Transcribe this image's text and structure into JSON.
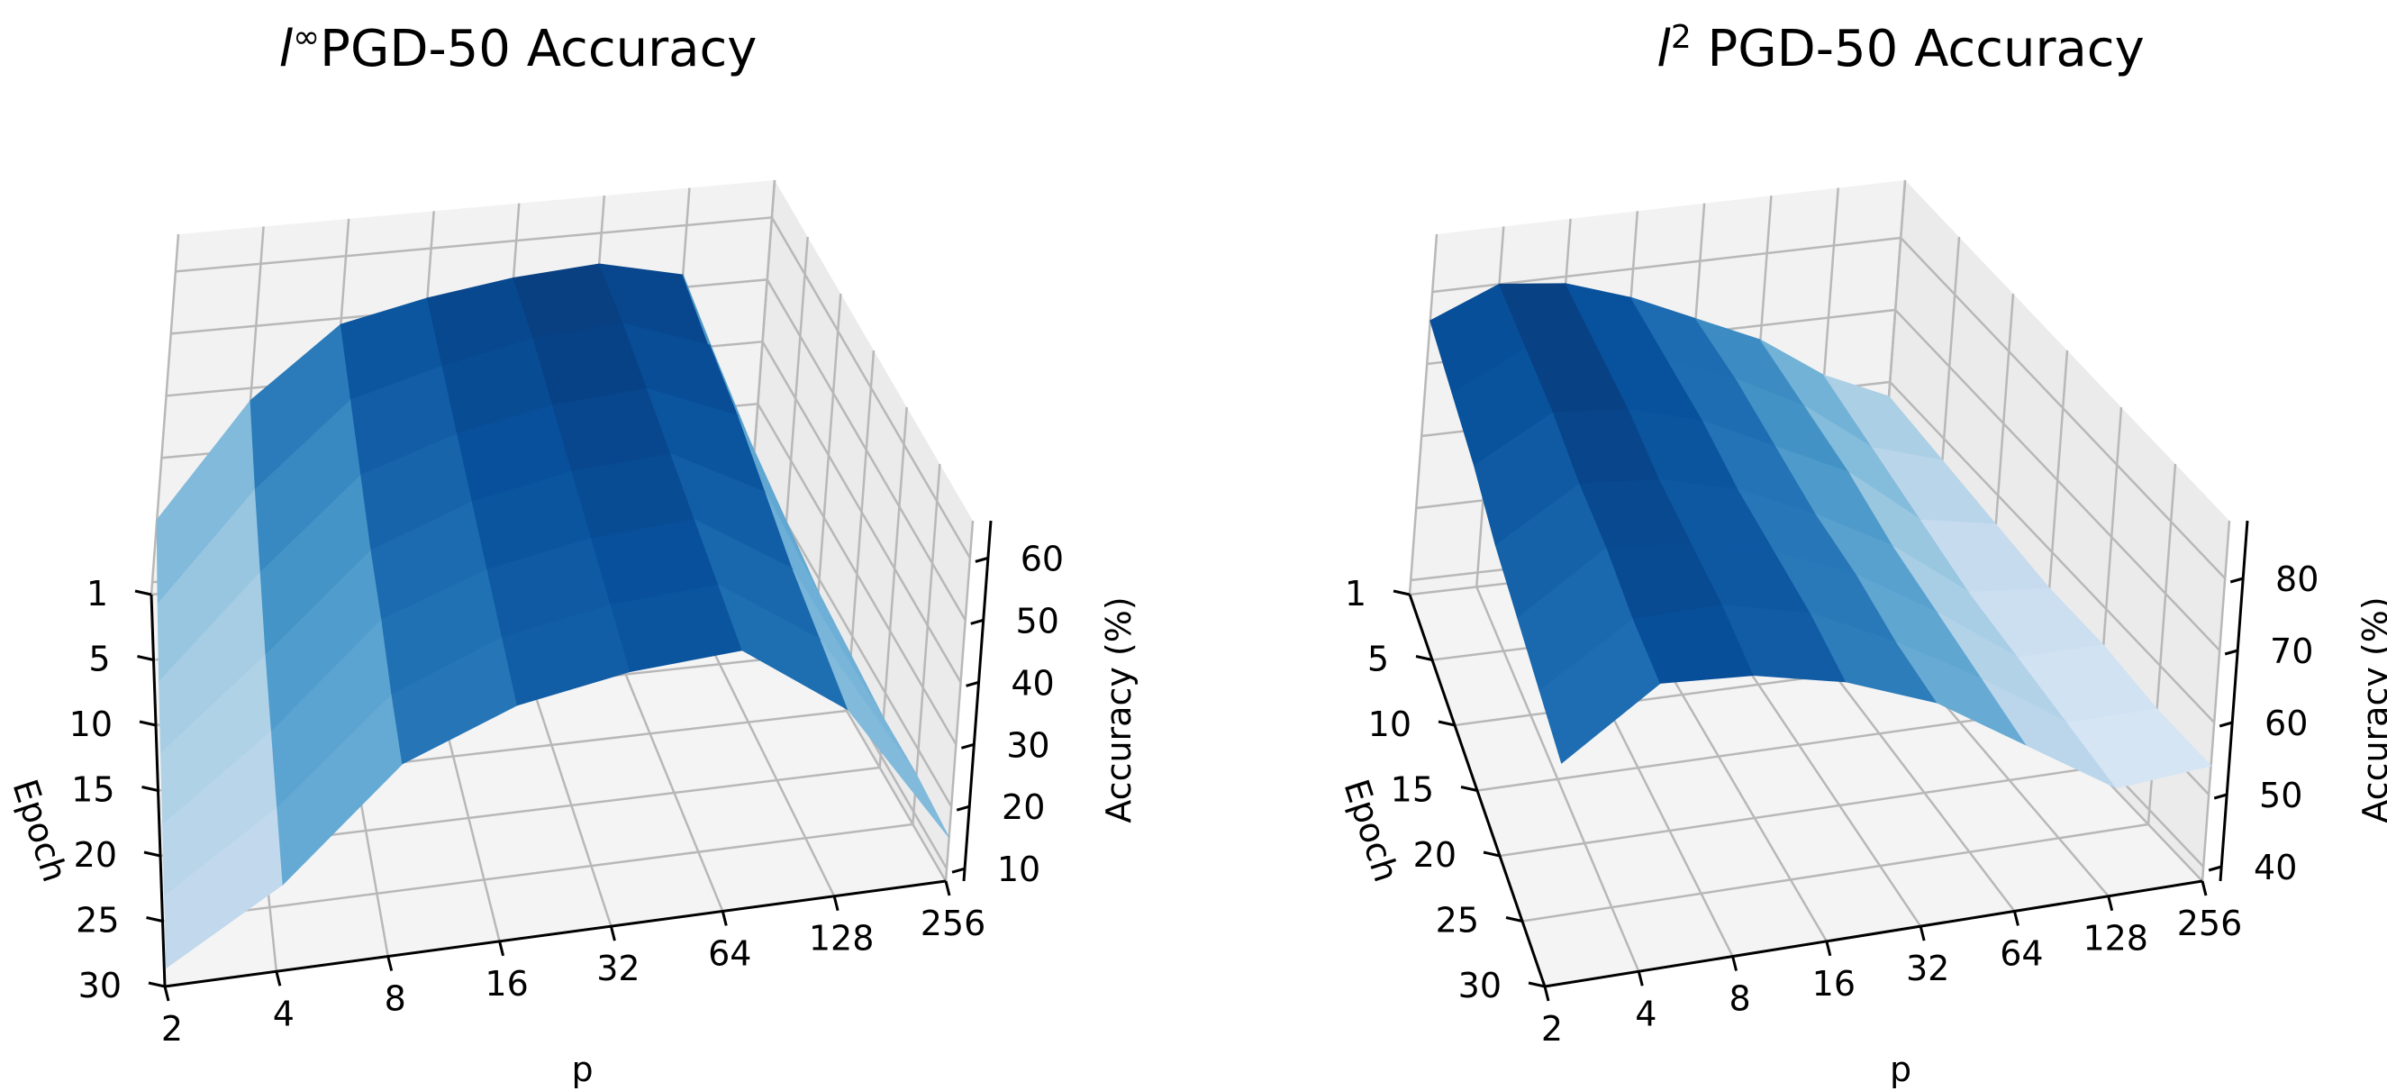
{
  "chart_data": [
    {
      "type": "surface3d",
      "title_main": "l",
      "title_sup": "∞",
      "title_rest": "PGD-50 Accuracy",
      "xlabel": "p",
      "ylabel": "Epoch",
      "zlabel": "Accuracy (%)",
      "x_ticks": [
        "2",
        "4",
        "8",
        "16",
        "32",
        "64",
        "128",
        "256"
      ],
      "y_ticks": [
        "1",
        "5",
        "10",
        "15",
        "20",
        "25",
        "30"
      ],
      "z_ticks": [
        "10",
        "20",
        "30",
        "40",
        "50",
        "60"
      ],
      "zlim": [
        8,
        66
      ],
      "colormap": "Blues",
      "note": "surface values per p (columns) and epoch (rows 1,5,10,15,20,25,30)",
      "epochs": [
        1,
        5,
        10,
        15,
        20,
        25,
        30
      ],
      "z": [
        [
          20,
          38,
          49,
          52,
          54,
          55,
          52,
          20
        ],
        [
          17,
          34,
          47,
          51,
          54,
          55,
          50,
          19
        ],
        [
          15,
          31,
          45,
          50,
          53,
          54,
          48,
          18
        ],
        [
          14,
          28,
          43,
          49,
          52,
          53,
          45,
          17
        ],
        [
          13,
          26,
          42,
          48,
          51,
          52,
          42,
          16
        ],
        [
          12,
          24,
          40,
          47,
          50,
          51,
          40,
          16
        ],
        [
          11,
          22,
          39,
          46,
          49,
          50,
          38,
          15
        ]
      ]
    },
    {
      "type": "surface3d",
      "title_main": "l",
      "title_sup": "2",
      "title_rest": " PGD-50 Accuracy",
      "xlabel": "p",
      "ylabel": "Epoch",
      "zlabel": "Accuracy (%)",
      "x_ticks": [
        "2",
        "4",
        "8",
        "16",
        "32",
        "64",
        "128",
        "256"
      ],
      "y_ticks": [
        "1",
        "5",
        "10",
        "15",
        "20",
        "25",
        "30"
      ],
      "z_ticks": [
        "40",
        "50",
        "60",
        "70",
        "80"
      ],
      "zlim": [
        38,
        88
      ],
      "colormap": "Blues",
      "epochs": [
        1,
        5,
        10,
        15,
        20,
        25,
        30
      ],
      "z": [
        [
          76,
          80,
          79,
          76,
          72,
          68,
          62,
          58
        ],
        [
          75,
          80,
          79,
          76,
          72,
          67,
          60,
          57
        ],
        [
          74,
          80,
          79,
          76,
          71,
          66,
          58,
          56
        ],
        [
          72,
          79,
          78,
          75,
          70,
          64,
          56,
          55
        ],
        [
          71,
          79,
          78,
          75,
          70,
          63,
          55,
          55
        ],
        [
          70,
          78,
          78,
          75,
          69,
          62,
          54,
          54
        ],
        [
          69,
          78,
          77,
          74,
          69,
          61,
          53,
          54
        ]
      ]
    }
  ]
}
